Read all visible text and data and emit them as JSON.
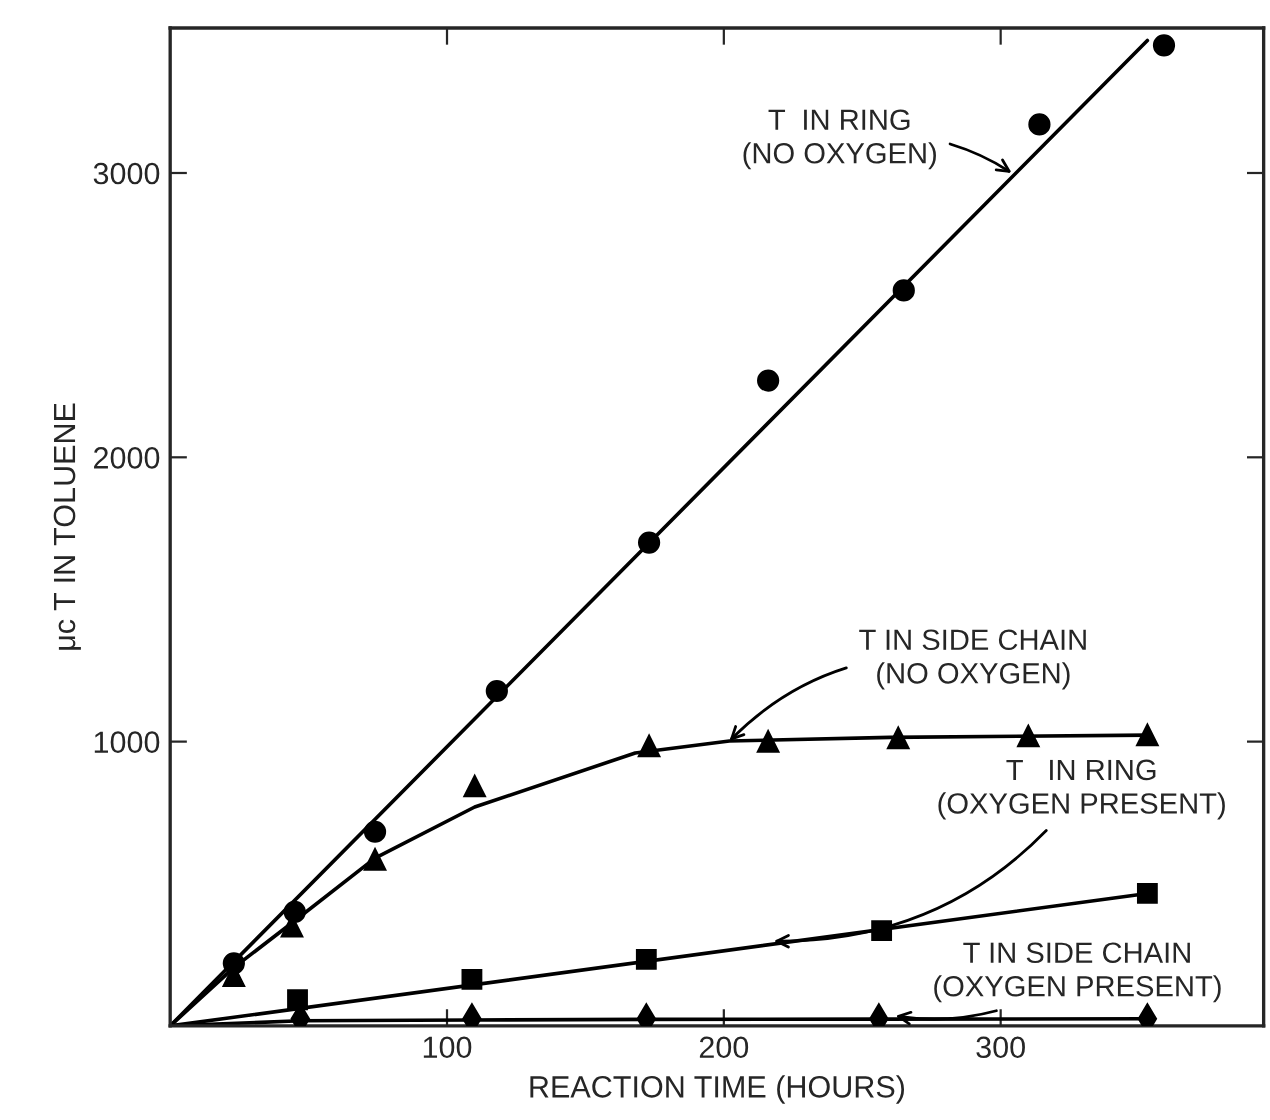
{
  "chart_data": {
    "type": "scatter",
    "xlabel": "REACTION TIME (HOURS)",
    "ylabel": "μc T IN TOLUENE",
    "xlim": [
      0,
      395
    ],
    "xticks": [
      100,
      200,
      300
    ],
    "ylim": [
      0,
      3510
    ],
    "yticks": [
      1000,
      2000,
      3000
    ],
    "grid": false,
    "legend": false,
    "series": [
      {
        "marker": "circle",
        "color": "#000000",
        "x": [
          23,
          45,
          74,
          118,
          173,
          216,
          265,
          314,
          359
        ],
        "values": [
          220,
          401,
          683,
          1178,
          1700,
          2270,
          2587,
          3171,
          3449
        ]
      },
      {
        "marker": "triangle",
        "color": "#000000",
        "x": [
          23,
          44,
          74,
          110,
          173,
          216,
          263,
          310,
          353
        ],
        "values": [
          176,
          350,
          585,
          843,
          984,
          1000,
          1012,
          1019,
          1023
        ]
      },
      {
        "marker": "square",
        "color": "#000000",
        "x": [
          46,
          109,
          172,
          257,
          353
        ],
        "values": [
          92,
          164,
          234,
          335,
          466
        ]
      },
      {
        "marker": "diamond",
        "color": "#000000",
        "x": [
          47,
          109,
          172,
          256,
          353
        ],
        "values": [
          25,
          25,
          25,
          25,
          25
        ]
      },
      {
        "type": "line",
        "marker": "none",
        "color": "#000000",
        "x": [
          0,
          353
        ],
        "values": [
          0,
          3466
        ]
      },
      {
        "type": "line",
        "marker": "none",
        "color": "#000000",
        "x": [
          0,
          23,
          45,
          74,
          110,
          168,
          202,
          260,
          353
        ],
        "values": [
          0,
          205,
          370,
          590,
          770,
          960,
          1002,
          1015,
          1023
        ]
      },
      {
        "type": "line",
        "marker": "none",
        "color": "#000000",
        "x": [
          0,
          353
        ],
        "values": [
          0,
          466
        ]
      },
      {
        "type": "line",
        "marker": "none",
        "color": "#000000",
        "x": [
          0,
          47,
          109,
          172,
          256,
          353
        ],
        "values": [
          0,
          18,
          21,
          23,
          24,
          25
        ]
      }
    ],
    "annotations": [
      {
        "text": "T  IN RING\n(NO OXYGEN)",
        "x": 304,
        "y": 3000
      },
      {
        "text": "T IN SIDE CHAIN\n(NO OXYGEN)",
        "x": 202,
        "y": 1002
      },
      {
        "text": "T   IN RING\n(OXYGEN PRESENT)",
        "x": 218,
        "y": 298
      },
      {
        "text": "T IN SIDE CHAIN\n(OXYGEN PRESENT)",
        "x": 262,
        "y": 35
      }
    ]
  }
}
